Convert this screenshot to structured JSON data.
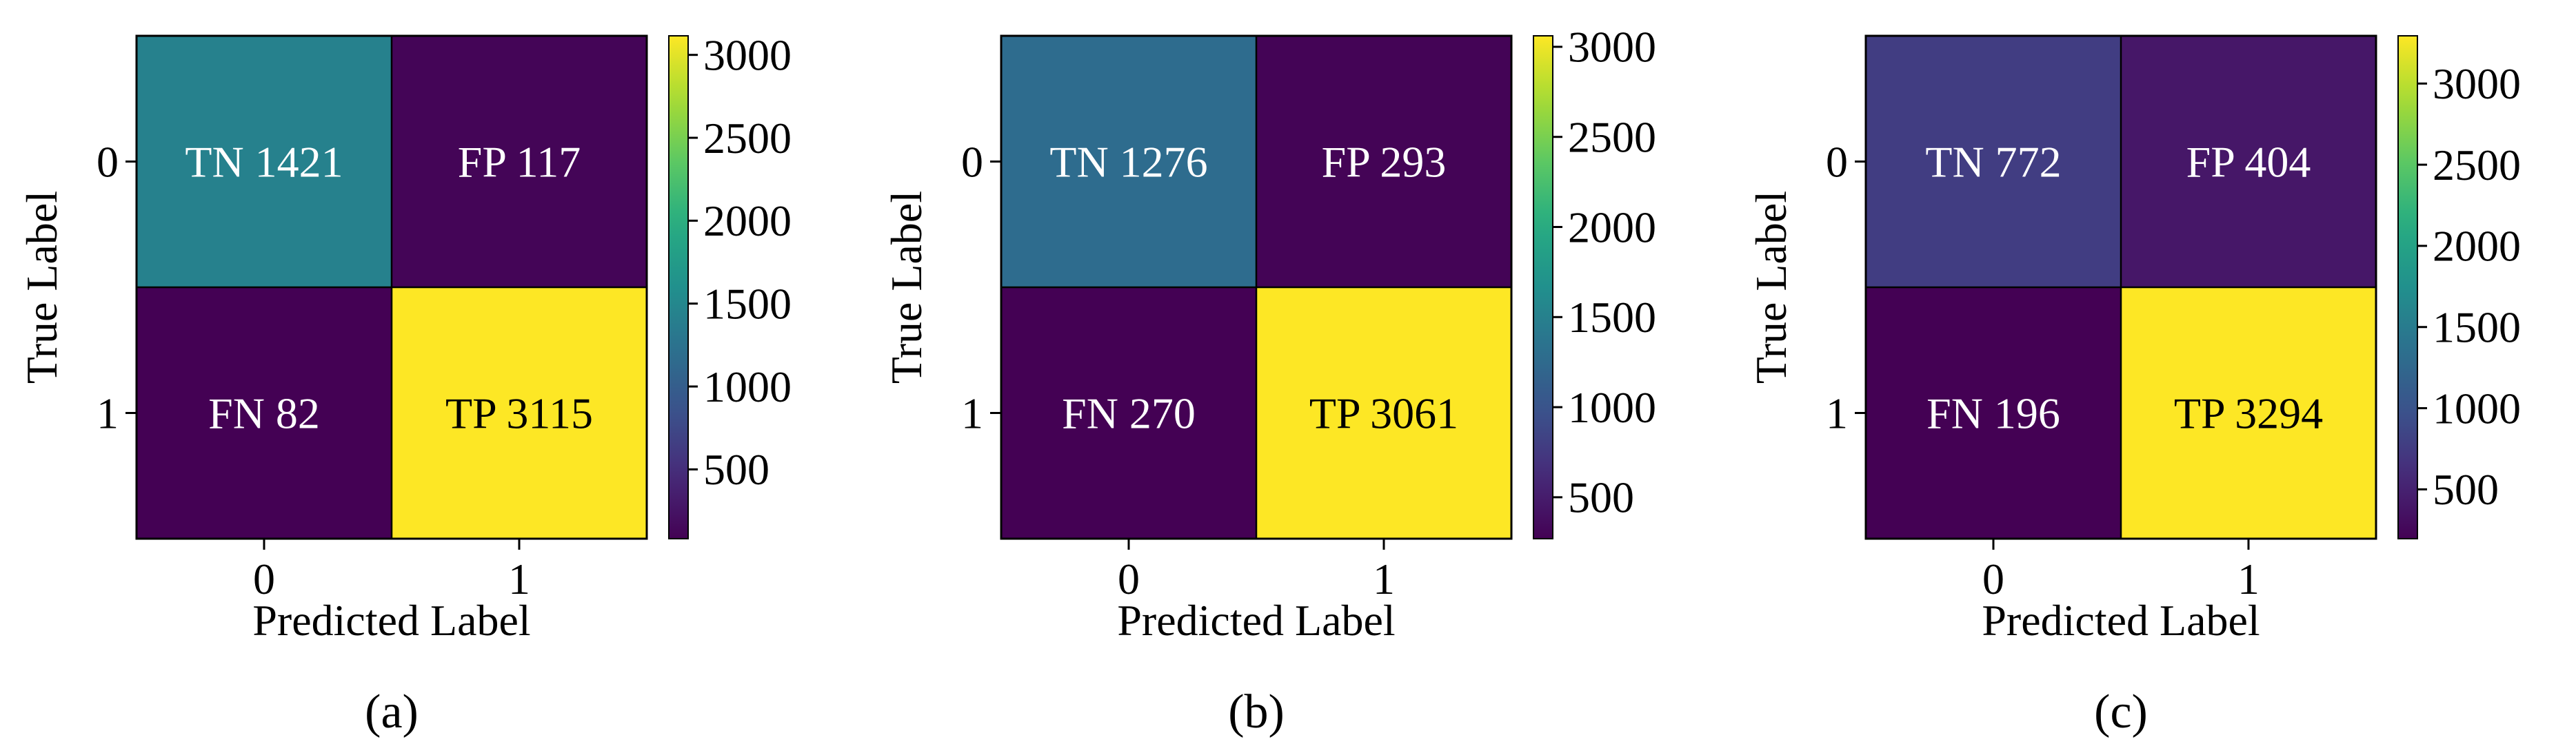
{
  "chart_data": [
    {
      "type": "heatmap",
      "panel_label": "(a)",
      "xlabel": "Predicted Label",
      "ylabel": "True Label",
      "x_ticks": [
        "0",
        "1"
      ],
      "y_ticks": [
        "0",
        "1"
      ],
      "cells": [
        [
          {
            "text": "TN 1421",
            "value": 1421
          },
          {
            "text": "FP 117",
            "value": 117
          }
        ],
        [
          {
            "text": "FN 82",
            "value": 82
          },
          {
            "text": "TP 3115",
            "value": 3115
          }
        ]
      ],
      "colorbar": {
        "colormap": "viridis",
        "min": 82,
        "max": 3115,
        "ticks": [
          500,
          1000,
          1500,
          2000,
          2500,
          3000
        ]
      }
    },
    {
      "type": "heatmap",
      "panel_label": "(b)",
      "xlabel": "Predicted Label",
      "ylabel": "True Label",
      "x_ticks": [
        "0",
        "1"
      ],
      "y_ticks": [
        "0",
        "1"
      ],
      "cells": [
        [
          {
            "text": "TN 1276",
            "value": 1276
          },
          {
            "text": "FP 293",
            "value": 293
          }
        ],
        [
          {
            "text": "FN 270",
            "value": 270
          },
          {
            "text": "TP 3061",
            "value": 3061
          }
        ]
      ],
      "colorbar": {
        "colormap": "viridis",
        "min": 270,
        "max": 3061,
        "ticks": [
          500,
          1000,
          1500,
          2000,
          2500,
          3000
        ]
      }
    },
    {
      "type": "heatmap",
      "panel_label": "(c)",
      "xlabel": "Predicted Label",
      "ylabel": "True Label",
      "x_ticks": [
        "0",
        "1"
      ],
      "y_ticks": [
        "0",
        "1"
      ],
      "cells": [
        [
          {
            "text": "TN 772",
            "value": 772
          },
          {
            "text": "FP 404",
            "value": 404
          }
        ],
        [
          {
            "text": "FN 196",
            "value": 196
          },
          {
            "text": "TP 3294",
            "value": 3294
          }
        ]
      ],
      "colorbar": {
        "colormap": "viridis",
        "min": 196,
        "max": 3294,
        "ticks": [
          500,
          1000,
          1500,
          2000,
          2500,
          3000
        ]
      }
    }
  ]
}
